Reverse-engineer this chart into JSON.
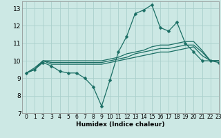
{
  "xlabel": "Humidex (Indice chaleur)",
  "bg_color": "#cce8e4",
  "grid_color": "#aad0cc",
  "line_color": "#1a6e64",
  "xlim": [
    -0.5,
    23
  ],
  "ylim": [
    7,
    13.4
  ],
  "yticks": [
    7,
    8,
    9,
    10,
    11,
    12,
    13
  ],
  "xticks": [
    0,
    1,
    2,
    3,
    4,
    5,
    6,
    7,
    8,
    9,
    10,
    11,
    12,
    13,
    14,
    15,
    16,
    17,
    18,
    19,
    20,
    21,
    22,
    23
  ],
  "series": [
    [
      9.3,
      9.5,
      9.9,
      9.7,
      9.4,
      9.3,
      9.3,
      9.0,
      8.5,
      7.4,
      8.9,
      10.5,
      11.4,
      12.7,
      12.9,
      13.2,
      11.9,
      11.7,
      12.2,
      11.0,
      10.5,
      10.0,
      10.0,
      9.9
    ],
    [
      9.3,
      9.5,
      10.0,
      10.0,
      10.0,
      10.0,
      10.0,
      10.0,
      10.0,
      10.0,
      10.1,
      10.2,
      10.4,
      10.5,
      10.6,
      10.8,
      10.9,
      10.9,
      11.0,
      11.1,
      11.1,
      10.6,
      10.0,
      10.0
    ],
    [
      9.3,
      9.5,
      10.0,
      9.9,
      9.9,
      9.9,
      9.9,
      9.9,
      9.9,
      9.9,
      10.0,
      10.1,
      10.2,
      10.4,
      10.5,
      10.6,
      10.7,
      10.7,
      10.8,
      10.9,
      10.9,
      10.5,
      10.0,
      10.0
    ],
    [
      9.3,
      9.6,
      10.0,
      9.8,
      9.8,
      9.8,
      9.8,
      9.8,
      9.8,
      9.8,
      9.9,
      10.0,
      10.1,
      10.2,
      10.3,
      10.4,
      10.5,
      10.5,
      10.6,
      10.7,
      10.8,
      10.3,
      10.0,
      10.0
    ]
  ],
  "marker_size": 2.5
}
